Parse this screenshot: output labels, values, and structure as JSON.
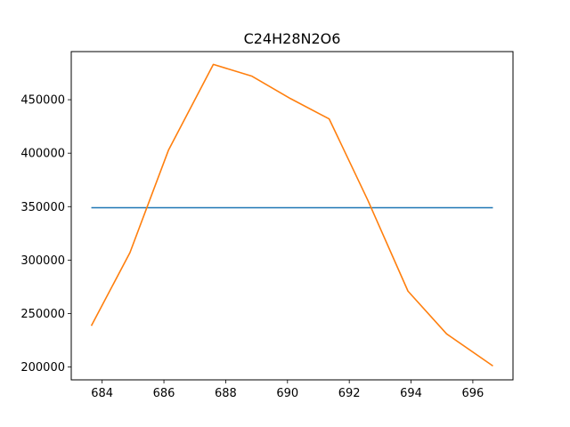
{
  "chart_data": {
    "type": "line",
    "title": "C24H28N2O6",
    "xlabel": "",
    "ylabel": "",
    "xlim": [
      683.0,
      697.3
    ],
    "ylim": [
      188000,
      495000
    ],
    "xticks": [
      684,
      686,
      688,
      690,
      692,
      694,
      696
    ],
    "yticks": [
      200000,
      250000,
      300000,
      350000,
      400000,
      450000
    ],
    "grid": false,
    "series": [
      {
        "color": "#1f77b4",
        "x": [
          683.65,
          696.65
        ],
        "y": [
          349000,
          349000
        ]
      },
      {
        "color": "#ff7f0e",
        "x": [
          683.65,
          684.9,
          686.15,
          687.6,
          688.85,
          690.1,
          691.35,
          692.6,
          693.9,
          695.15,
          696.65
        ],
        "y": [
          238500,
          307000,
          403000,
          483000,
          472000,
          451000,
          432000,
          356000,
          271000,
          231000,
          201000
        ]
      }
    ]
  }
}
